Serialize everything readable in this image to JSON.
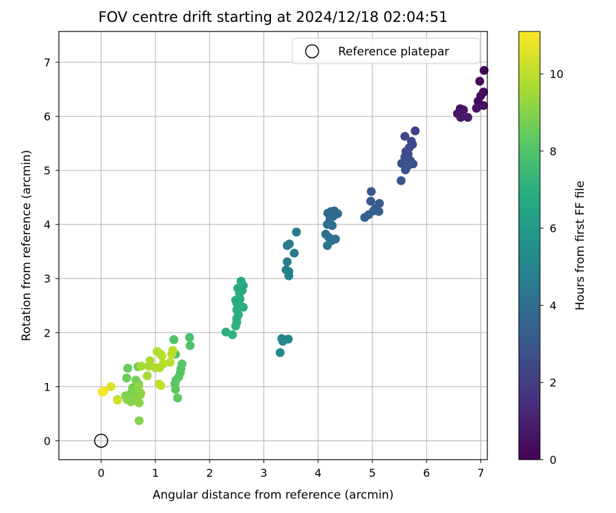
{
  "chart_data": {
    "type": "scatter",
    "title": "FOV centre drift starting at 2024/12/18 02:04:51",
    "xlabel": "Angular distance from reference (arcmin)",
    "ylabel": "Rotation from reference (arcmin)",
    "xlim": [
      -0.78,
      7.12
    ],
    "ylim": [
      -0.35,
      7.57
    ],
    "xticks": [
      0,
      1,
      2,
      3,
      4,
      5,
      6,
      7
    ],
    "yticks": [
      0,
      1,
      2,
      3,
      4,
      5,
      6,
      7
    ],
    "grid": true,
    "legend": {
      "placement": "top-right",
      "entries": [
        "Reference platepar"
      ]
    },
    "reference_point": {
      "x": 0,
      "y": 0,
      "label": "Reference platepar"
    },
    "colorbar": {
      "label": "Hours from first FF file",
      "range": [
        0,
        11.1
      ],
      "ticks": [
        0,
        2,
        4,
        6,
        8,
        10
      ],
      "colormap": "viridis"
    },
    "points": [
      {
        "x": 7.06,
        "y": 6.85,
        "h": 0.1
      },
      {
        "x": 6.98,
        "y": 6.65,
        "h": 0.2
      },
      {
        "x": 7.05,
        "y": 6.45,
        "h": 0.3
      },
      {
        "x": 7.0,
        "y": 6.38,
        "h": 0.4
      },
      {
        "x": 6.95,
        "y": 6.28,
        "h": 0.35
      },
      {
        "x": 7.05,
        "y": 6.2,
        "h": 0.5
      },
      {
        "x": 6.92,
        "y": 6.15,
        "h": 0.6
      },
      {
        "x": 6.62,
        "y": 6.14,
        "h": 0.55
      },
      {
        "x": 6.68,
        "y": 6.12,
        "h": 0.65
      },
      {
        "x": 6.57,
        "y": 6.05,
        "h": 0.7
      },
      {
        "x": 6.63,
        "y": 5.98,
        "h": 0.75
      },
      {
        "x": 6.76,
        "y": 5.98,
        "h": 0.8
      },
      {
        "x": 5.79,
        "y": 5.73,
        "h": 2.2
      },
      {
        "x": 5.6,
        "y": 5.63,
        "h": 2.3
      },
      {
        "x": 5.72,
        "y": 5.54,
        "h": 2.4
      },
      {
        "x": 5.74,
        "y": 5.48,
        "h": 2.45
      },
      {
        "x": 5.68,
        "y": 5.42,
        "h": 2.5
      },
      {
        "x": 5.62,
        "y": 5.35,
        "h": 2.55
      },
      {
        "x": 5.66,
        "y": 5.3,
        "h": 2.6
      },
      {
        "x": 5.6,
        "y": 5.25,
        "h": 2.65
      },
      {
        "x": 5.7,
        "y": 5.18,
        "h": 2.7
      },
      {
        "x": 5.75,
        "y": 5.12,
        "h": 2.75
      },
      {
        "x": 5.54,
        "y": 5.13,
        "h": 2.8
      },
      {
        "x": 5.65,
        "y": 5.08,
        "h": 2.85
      },
      {
        "x": 5.61,
        "y": 5.01,
        "h": 2.9
      },
      {
        "x": 5.53,
        "y": 4.81,
        "h": 3.0
      },
      {
        "x": 4.98,
        "y": 4.61,
        "h": 3.1
      },
      {
        "x": 4.97,
        "y": 4.43,
        "h": 3.2
      },
      {
        "x": 5.13,
        "y": 4.39,
        "h": 3.25
      },
      {
        "x": 5.06,
        "y": 4.3,
        "h": 3.3
      },
      {
        "x": 5.02,
        "y": 4.25,
        "h": 3.35
      },
      {
        "x": 5.12,
        "y": 4.24,
        "h": 3.4
      },
      {
        "x": 4.93,
        "y": 4.18,
        "h": 3.45
      },
      {
        "x": 4.86,
        "y": 4.13,
        "h": 3.5
      },
      {
        "x": 4.3,
        "y": 4.25,
        "h": 3.7
      },
      {
        "x": 4.24,
        "y": 4.24,
        "h": 3.75
      },
      {
        "x": 4.36,
        "y": 4.2,
        "h": 3.8
      },
      {
        "x": 4.18,
        "y": 4.21,
        "h": 3.85
      },
      {
        "x": 4.28,
        "y": 4.15,
        "h": 3.9
      },
      {
        "x": 4.22,
        "y": 4.1,
        "h": 3.95
      },
      {
        "x": 4.17,
        "y": 4.0,
        "h": 4.0
      },
      {
        "x": 4.26,
        "y": 3.98,
        "h": 4.05
      },
      {
        "x": 4.14,
        "y": 3.82,
        "h": 4.1
      },
      {
        "x": 4.2,
        "y": 3.76,
        "h": 4.15
      },
      {
        "x": 4.32,
        "y": 3.73,
        "h": 4.2
      },
      {
        "x": 4.25,
        "y": 3.7,
        "h": 4.25
      },
      {
        "x": 4.17,
        "y": 3.61,
        "h": 4.3
      },
      {
        "x": 3.6,
        "y": 3.86,
        "h": 4.5
      },
      {
        "x": 3.47,
        "y": 3.64,
        "h": 4.6
      },
      {
        "x": 3.43,
        "y": 3.61,
        "h": 4.65
      },
      {
        "x": 3.56,
        "y": 3.47,
        "h": 4.7
      },
      {
        "x": 3.43,
        "y": 3.31,
        "h": 4.75
      },
      {
        "x": 3.41,
        "y": 3.16,
        "h": 4.8
      },
      {
        "x": 3.46,
        "y": 3.13,
        "h": 4.85
      },
      {
        "x": 3.46,
        "y": 3.05,
        "h": 4.9
      },
      {
        "x": 3.33,
        "y": 1.89,
        "h": 5.1
      },
      {
        "x": 3.45,
        "y": 1.88,
        "h": 5.15
      },
      {
        "x": 3.35,
        "y": 1.84,
        "h": 5.2
      },
      {
        "x": 3.3,
        "y": 1.63,
        "h": 5.3
      },
      {
        "x": 2.58,
        "y": 2.95,
        "h": 6.6
      },
      {
        "x": 2.62,
        "y": 2.87,
        "h": 6.65
      },
      {
        "x": 2.52,
        "y": 2.82,
        "h": 6.7
      },
      {
        "x": 2.6,
        "y": 2.78,
        "h": 6.72
      },
      {
        "x": 2.55,
        "y": 2.73,
        "h": 6.75
      },
      {
        "x": 2.56,
        "y": 2.62,
        "h": 6.8
      },
      {
        "x": 2.48,
        "y": 2.6,
        "h": 6.82
      },
      {
        "x": 2.5,
        "y": 2.55,
        "h": 6.85
      },
      {
        "x": 2.55,
        "y": 2.5,
        "h": 6.88
      },
      {
        "x": 2.62,
        "y": 2.47,
        "h": 6.9
      },
      {
        "x": 2.5,
        "y": 2.42,
        "h": 6.92
      },
      {
        "x": 2.53,
        "y": 2.33,
        "h": 6.95
      },
      {
        "x": 2.5,
        "y": 2.26,
        "h": 6.98
      },
      {
        "x": 2.5,
        "y": 2.19,
        "h": 7.0
      },
      {
        "x": 2.48,
        "y": 2.12,
        "h": 7.02
      },
      {
        "x": 2.3,
        "y": 2.01,
        "h": 7.05
      },
      {
        "x": 2.42,
        "y": 1.96,
        "h": 7.08
      },
      {
        "x": 1.63,
        "y": 1.91,
        "h": 7.9
      },
      {
        "x": 1.64,
        "y": 1.76,
        "h": 7.95
      },
      {
        "x": 1.34,
        "y": 1.87,
        "h": 8.0
      },
      {
        "x": 1.37,
        "y": 1.6,
        "h": 8.05
      },
      {
        "x": 1.49,
        "y": 1.42,
        "h": 8.1
      },
      {
        "x": 1.47,
        "y": 1.33,
        "h": 8.12
      },
      {
        "x": 1.46,
        "y": 1.26,
        "h": 8.15
      },
      {
        "x": 1.43,
        "y": 1.18,
        "h": 8.18
      },
      {
        "x": 1.38,
        "y": 1.12,
        "h": 8.2
      },
      {
        "x": 1.36,
        "y": 1.05,
        "h": 8.22
      },
      {
        "x": 1.37,
        "y": 0.95,
        "h": 8.25
      },
      {
        "x": 1.41,
        "y": 0.79,
        "h": 8.3
      },
      {
        "x": 0.49,
        "y": 1.34,
        "h": 8.5
      },
      {
        "x": 0.68,
        "y": 1.37,
        "h": 8.55
      },
      {
        "x": 0.47,
        "y": 1.16,
        "h": 8.6
      },
      {
        "x": 0.64,
        "y": 1.12,
        "h": 8.7
      },
      {
        "x": 0.69,
        "y": 1.05,
        "h": 8.75
      },
      {
        "x": 0.58,
        "y": 0.98,
        "h": 8.8
      },
      {
        "x": 0.66,
        "y": 0.92,
        "h": 8.85
      },
      {
        "x": 0.55,
        "y": 0.88,
        "h": 8.9
      },
      {
        "x": 0.72,
        "y": 0.85,
        "h": 8.95
      },
      {
        "x": 0.45,
        "y": 0.83,
        "h": 8.9
      },
      {
        "x": 0.52,
        "y": 0.8,
        "h": 8.95
      },
      {
        "x": 0.6,
        "y": 0.78,
        "h": 9.0
      },
      {
        "x": 0.48,
        "y": 0.76,
        "h": 9.0
      },
      {
        "x": 0.65,
        "y": 0.74,
        "h": 9.05
      },
      {
        "x": 0.55,
        "y": 0.72,
        "h": 9.05
      },
      {
        "x": 0.7,
        "y": 0.7,
        "h": 9.1
      },
      {
        "x": 0.3,
        "y": 0.76,
        "h": 9.1
      },
      {
        "x": 0.7,
        "y": 0.37,
        "h": 9.0
      },
      {
        "x": 0.73,
        "y": 0.88,
        "h": 9.15
      },
      {
        "x": 0.69,
        "y": 1.0,
        "h": 9.15
      },
      {
        "x": 0.74,
        "y": 1.38,
        "h": 9.6
      },
      {
        "x": 0.9,
        "y": 1.48,
        "h": 9.7
      },
      {
        "x": 0.88,
        "y": 1.38,
        "h": 9.65
      },
      {
        "x": 0.85,
        "y": 1.2,
        "h": 9.6
      },
      {
        "x": 1.0,
        "y": 1.35,
        "h": 9.75
      },
      {
        "x": 1.03,
        "y": 1.65,
        "h": 9.8
      },
      {
        "x": 1.1,
        "y": 1.6,
        "h": 9.85
      },
      {
        "x": 1.12,
        "y": 1.57,
        "h": 9.9
      },
      {
        "x": 1.08,
        "y": 1.35,
        "h": 9.8
      },
      {
        "x": 1.14,
        "y": 1.42,
        "h": 9.85
      },
      {
        "x": 1.27,
        "y": 1.45,
        "h": 9.9
      },
      {
        "x": 1.3,
        "y": 1.6,
        "h": 9.95
      },
      {
        "x": 1.32,
        "y": 1.67,
        "h": 9.95
      },
      {
        "x": 1.07,
        "y": 1.05,
        "h": 10.0
      },
      {
        "x": 1.1,
        "y": 1.02,
        "h": 10.05
      },
      {
        "x": 0.3,
        "y": 0.75,
        "h": 10.3
      },
      {
        "x": 0.18,
        "y": 1.0,
        "h": 10.5
      },
      {
        "x": 0.05,
        "y": 0.92,
        "h": 10.9
      },
      {
        "x": 0.02,
        "y": 0.9,
        "h": 11.0
      }
    ]
  }
}
